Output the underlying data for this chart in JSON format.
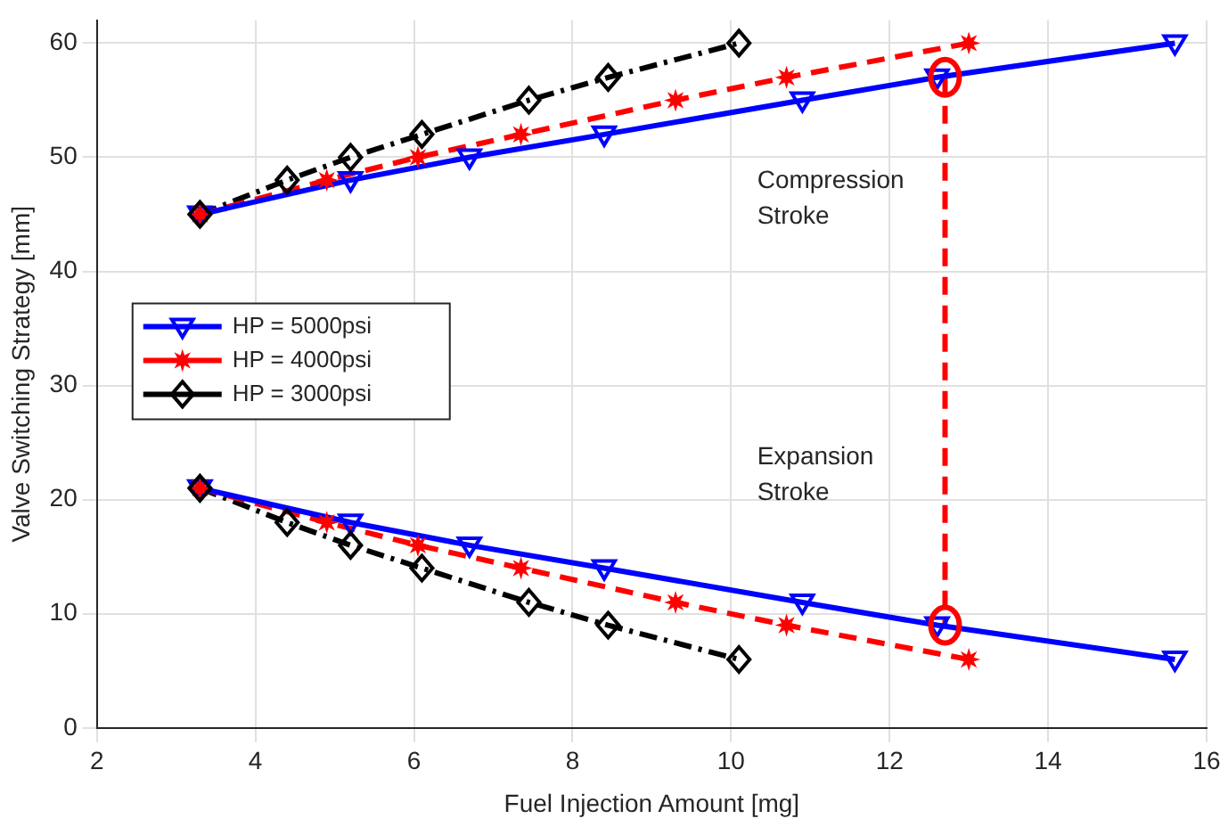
{
  "chart_data": {
    "type": "line",
    "xlabel": "Fuel Injection Amount [mg]",
    "ylabel": "Valve Switching Strategy [mm]",
    "xlim": [
      2,
      16
    ],
    "xticks": [
      2,
      4,
      6,
      8,
      10,
      12,
      14,
      16
    ],
    "ylim": [
      0,
      62
    ],
    "yticks": [
      0,
      10,
      20,
      30,
      40,
      50,
      60
    ],
    "grid": true,
    "legend": "left",
    "annotations": [
      "Compression Stroke",
      "Expansion Stroke"
    ],
    "series": [
      {
        "name": "HP = 5000psi",
        "color": "#0000ff",
        "marker": "triangle",
        "line_style": "solid",
        "x": [
          3.3,
          5.2,
          6.7,
          8.4,
          10.9,
          12.6,
          15.6
        ],
        "values": [
          45,
          48,
          50,
          52,
          55,
          57,
          60
        ]
      },
      {
        "name": "HP = 4000psi",
        "color": "#ff0000",
        "marker": "star",
        "line_style": "dashed",
        "x": [
          3.3,
          4.9,
          6.05,
          7.35,
          9.3,
          10.7,
          13.0
        ],
        "values": [
          45,
          48,
          50,
          52,
          55,
          57,
          60
        ]
      },
      {
        "name": "HP = 3000psi",
        "color": "#000000",
        "marker": "diamond",
        "line_style": "dashdot",
        "x": [
          3.3,
          4.4,
          5.2,
          6.1,
          7.45,
          8.45,
          10.1
        ],
        "values": [
          45,
          48,
          50,
          52,
          55,
          57,
          60
        ]
      },
      {
        "color": "#0000ff",
        "marker": "triangle",
        "line_style": "solid",
        "x": [
          3.3,
          5.2,
          6.7,
          8.4,
          10.9,
          12.6,
          15.6
        ],
        "values": [
          21,
          18,
          16,
          14,
          11,
          9,
          6
        ]
      },
      {
        "color": "#ff0000",
        "marker": "star",
        "line_style": "dashed",
        "x": [
          3.3,
          4.9,
          6.05,
          7.35,
          9.3,
          10.7,
          13.0
        ],
        "values": [
          21,
          18,
          16,
          14,
          11,
          9,
          6
        ]
      },
      {
        "color": "#000000",
        "marker": "diamond",
        "line_style": "dashdot",
        "x": [
          3.3,
          4.4,
          5.2,
          6.1,
          7.45,
          8.45,
          10.1
        ],
        "values": [
          21,
          18,
          16,
          14,
          11,
          9,
          6
        ]
      },
      {
        "color": "#ff0000",
        "marker": "circle",
        "line_style": "dashed",
        "x": [
          12.7,
          12.7
        ],
        "values": [
          57,
          9
        ]
      }
    ]
  }
}
